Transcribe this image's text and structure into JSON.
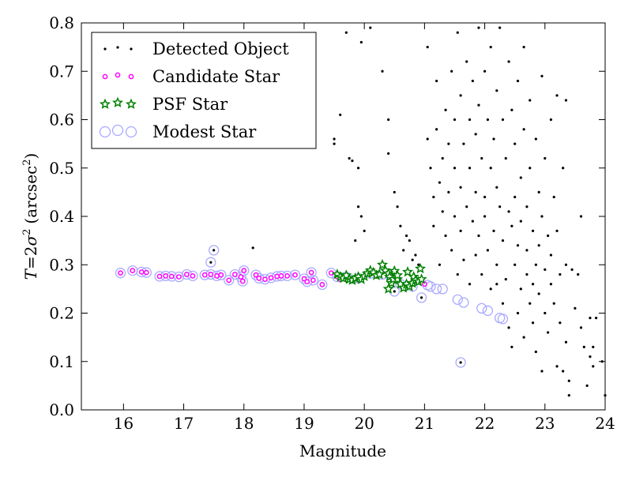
{
  "chart_data": {
    "type": "scatter",
    "title": "",
    "xlabel": "Magnitude",
    "ylabel": "T = 2σ² (arcsec²)",
    "ylabel_parts": {
      "T": "T",
      "eq": "=2",
      "sigma": "σ",
      "sup2": "2",
      "unit": "(arcsec",
      "unit_sup": "2",
      "close": ")"
    },
    "xlim": [
      15.3,
      24
    ],
    "ylim": [
      0.0,
      0.8
    ],
    "xticks": [
      16,
      17,
      18,
      19,
      20,
      21,
      22,
      23,
      24
    ],
    "xtick_labels": [
      "16",
      "17",
      "18",
      "19",
      "20",
      "21",
      "22",
      "23",
      "24"
    ],
    "yticks": [
      0.0,
      0.1,
      0.2,
      0.3,
      0.4,
      0.5,
      0.6,
      0.7,
      0.8
    ],
    "ytick_labels": [
      "0.0",
      "0.1",
      "0.2",
      "0.3",
      "0.4",
      "0.5",
      "0.6",
      "0.7",
      "0.8"
    ],
    "grid": false,
    "legend_position": "top-left",
    "series": [
      {
        "name": "Modest Star",
        "marker": "ring",
        "color": "#aaaaff",
        "points": [
          [
            15.95,
            0.283
          ],
          [
            16.15,
            0.288
          ],
          [
            16.3,
            0.285
          ],
          [
            16.38,
            0.284
          ],
          [
            16.6,
            0.276
          ],
          [
            16.7,
            0.277
          ],
          [
            16.8,
            0.276
          ],
          [
            16.92,
            0.275
          ],
          [
            17.05,
            0.28
          ],
          [
            17.15,
            0.277
          ],
          [
            17.35,
            0.279
          ],
          [
            17.45,
            0.28
          ],
          [
            17.55,
            0.277
          ],
          [
            17.62,
            0.279
          ],
          [
            17.75,
            0.268
          ],
          [
            17.85,
            0.28
          ],
          [
            17.95,
            0.275
          ],
          [
            17.98,
            0.266
          ],
          [
            18.0,
            0.288
          ],
          [
            18.2,
            0.279
          ],
          [
            18.25,
            0.272
          ],
          [
            18.35,
            0.27
          ],
          [
            18.45,
            0.273
          ],
          [
            18.55,
            0.276
          ],
          [
            18.62,
            0.277
          ],
          [
            18.72,
            0.277
          ],
          [
            18.85,
            0.279
          ],
          [
            19.0,
            0.271
          ],
          [
            19.05,
            0.265
          ],
          [
            19.12,
            0.284
          ],
          [
            19.15,
            0.268
          ],
          [
            19.3,
            0.259
          ],
          [
            19.45,
            0.283
          ],
          [
            19.55,
            0.275
          ],
          [
            17.45,
            0.305
          ],
          [
            17.5,
            0.33
          ],
          [
            20.5,
            0.245
          ],
          [
            20.95,
            0.232
          ],
          [
            21.05,
            0.258
          ],
          [
            21.1,
            0.255
          ],
          [
            21.2,
            0.25
          ],
          [
            21.3,
            0.25
          ],
          [
            21.55,
            0.228
          ],
          [
            21.65,
            0.222
          ],
          [
            21.6,
            0.098
          ],
          [
            21.95,
            0.21
          ],
          [
            22.05,
            0.205
          ],
          [
            22.25,
            0.19
          ],
          [
            22.3,
            0.188
          ],
          [
            19.7,
            0.275
          ],
          [
            19.9,
            0.272
          ],
          [
            20.1,
            0.282
          ],
          [
            20.3,
            0.28
          ],
          [
            20.45,
            0.27
          ],
          [
            20.6,
            0.26
          ],
          [
            20.8,
            0.255
          ]
        ]
      },
      {
        "name": "Detected Object",
        "marker": "dot",
        "color": "#000000",
        "points": [
          [
            17.45,
            0.305
          ],
          [
            17.5,
            0.33
          ],
          [
            18.15,
            0.335
          ],
          [
            19.5,
            0.56
          ],
          [
            19.5,
            0.55
          ],
          [
            19.6,
            0.61
          ],
          [
            19.75,
            0.52
          ],
          [
            19.8,
            0.515
          ],
          [
            19.9,
            0.5
          ],
          [
            19.95,
            0.4
          ],
          [
            19.95,
            0.76
          ],
          [
            20.1,
            0.79
          ],
          [
            19.7,
            0.78
          ],
          [
            19.85,
            0.35
          ],
          [
            19.9,
            0.42
          ],
          [
            20.0,
            0.37
          ],
          [
            20.3,
            0.7
          ],
          [
            20.4,
            0.6
          ],
          [
            20.4,
            0.53
          ],
          [
            20.5,
            0.45
          ],
          [
            20.55,
            0.42
          ],
          [
            20.6,
            0.38
          ],
          [
            20.65,
            0.33
          ],
          [
            20.7,
            0.36
          ],
          [
            20.75,
            0.35
          ],
          [
            20.8,
            0.31
          ],
          [
            20.85,
            0.32
          ],
          [
            20.9,
            0.3
          ],
          [
            20.5,
            0.245
          ],
          [
            20.95,
            0.232
          ],
          [
            21.0,
            0.26
          ],
          [
            21.05,
            0.75
          ],
          [
            21.05,
            0.56
          ],
          [
            21.1,
            0.5
          ],
          [
            21.15,
            0.44
          ],
          [
            21.15,
            0.38
          ],
          [
            21.2,
            0.68
          ],
          [
            21.2,
            0.58
          ],
          [
            21.25,
            0.47
          ],
          [
            21.25,
            0.3
          ],
          [
            21.3,
            0.52
          ],
          [
            21.3,
            0.41
          ],
          [
            21.35,
            0.62
          ],
          [
            21.35,
            0.36
          ],
          [
            21.4,
            0.55
          ],
          [
            21.4,
            0.45
          ],
          [
            21.45,
            0.7
          ],
          [
            21.45,
            0.33
          ],
          [
            21.5,
            0.6
          ],
          [
            21.5,
            0.5
          ],
          [
            21.5,
            0.4
          ],
          [
            21.55,
            0.78
          ],
          [
            21.55,
            0.28
          ],
          [
            21.6,
            0.65
          ],
          [
            21.6,
            0.46
          ],
          [
            21.6,
            0.37
          ],
          [
            21.65,
            0.55
          ],
          [
            21.65,
            0.31
          ],
          [
            21.7,
            0.72
          ],
          [
            21.7,
            0.42
          ],
          [
            21.75,
            0.6
          ],
          [
            21.75,
            0.5
          ],
          [
            21.75,
            0.26
          ],
          [
            21.8,
            0.68
          ],
          [
            21.8,
            0.39
          ],
          [
            21.85,
            0.57
          ],
          [
            21.85,
            0.45
          ],
          [
            21.85,
            0.32
          ],
          [
            21.9,
            0.79
          ],
          [
            21.9,
            0.63
          ],
          [
            21.9,
            0.36
          ],
          [
            21.95,
            0.52
          ],
          [
            21.95,
            0.28
          ],
          [
            22.0,
            0.7
          ],
          [
            22.0,
            0.44
          ],
          [
            22.0,
            0.4
          ],
          [
            22.05,
            0.6
          ],
          [
            22.05,
            0.33
          ],
          [
            22.1,
            0.75
          ],
          [
            22.1,
            0.5
          ],
          [
            22.1,
            0.25
          ],
          [
            22.15,
            0.56
          ],
          [
            22.15,
            0.37
          ],
          [
            22.2,
            0.66
          ],
          [
            22.2,
            0.46
          ],
          [
            22.2,
            0.3
          ],
          [
            22.25,
            0.79
          ],
          [
            22.25,
            0.42
          ],
          [
            22.3,
            0.6
          ],
          [
            22.3,
            0.35
          ],
          [
            22.3,
            0.22
          ],
          [
            22.35,
            0.52
          ],
          [
            22.35,
            0.27
          ],
          [
            22.4,
            0.72
          ],
          [
            22.4,
            0.41
          ],
          [
            22.4,
            0.17
          ],
          [
            22.45,
            0.62
          ],
          [
            22.45,
            0.38
          ],
          [
            22.45,
            0.13
          ],
          [
            22.5,
            0.55
          ],
          [
            22.5,
            0.44
          ],
          [
            22.5,
            0.3
          ],
          [
            22.55,
            0.68
          ],
          [
            22.55,
            0.34
          ],
          [
            22.55,
            0.2
          ],
          [
            22.6,
            0.48
          ],
          [
            22.6,
            0.39
          ],
          [
            22.6,
            0.25
          ],
          [
            22.65,
            0.75
          ],
          [
            22.65,
            0.58
          ],
          [
            22.65,
            0.15
          ],
          [
            22.7,
            0.42
          ],
          [
            22.7,
            0.33
          ],
          [
            22.7,
            0.28
          ],
          [
            22.75,
            0.64
          ],
          [
            22.75,
            0.5
          ],
          [
            22.75,
            0.22
          ],
          [
            22.8,
            0.37
          ],
          [
            22.8,
            0.18
          ],
          [
            22.85,
            0.56
          ],
          [
            22.85,
            0.3
          ],
          [
            22.85,
            0.12
          ],
          [
            22.9,
            0.45
          ],
          [
            22.9,
            0.34
          ],
          [
            22.9,
            0.24
          ],
          [
            22.95,
            0.69
          ],
          [
            22.95,
            0.4
          ],
          [
            22.95,
            0.08
          ],
          [
            23.0,
            0.52
          ],
          [
            23.0,
            0.29
          ],
          [
            23.0,
            0.2
          ],
          [
            23.05,
            0.36
          ],
          [
            23.05,
            0.16
          ],
          [
            23.1,
            0.6
          ],
          [
            23.1,
            0.32
          ],
          [
            23.1,
            0.26
          ],
          [
            23.15,
            0.44
          ],
          [
            23.15,
            0.22
          ],
          [
            23.2,
            0.65
          ],
          [
            23.2,
            0.37
          ],
          [
            23.2,
            0.09
          ],
          [
            23.25,
            0.28
          ],
          [
            23.25,
            0.18
          ],
          [
            23.3,
            0.5
          ],
          [
            23.3,
            0.08
          ],
          [
            23.35,
            0.64
          ],
          [
            23.35,
            0.3
          ],
          [
            23.35,
            0.14
          ],
          [
            23.4,
            0.06
          ],
          [
            23.4,
            0.03
          ],
          [
            23.45,
            0.29
          ],
          [
            23.5,
            0.21
          ],
          [
            23.55,
            0.28
          ],
          [
            23.6,
            0.4
          ],
          [
            23.6,
            0.17
          ],
          [
            23.65,
            0.13
          ],
          [
            23.7,
            0.05
          ],
          [
            23.75,
            0.11
          ],
          [
            23.75,
            0.19
          ],
          [
            23.8,
            0.13
          ],
          [
            23.85,
            0.19
          ],
          [
            23.95,
            0.1
          ],
          [
            24.0,
            0.03
          ],
          [
            23.8,
            0.09
          ],
          [
            22.2,
            0.26
          ],
          [
            22.8,
            0.26
          ],
          [
            21.6,
            0.098
          ]
        ]
      },
      {
        "name": "Candidate Star",
        "marker": "small-circle",
        "color": "#ff00ff",
        "points": [
          [
            15.95,
            0.283
          ],
          [
            16.15,
            0.288
          ],
          [
            16.3,
            0.285
          ],
          [
            16.38,
            0.284
          ],
          [
            16.6,
            0.276
          ],
          [
            16.7,
            0.277
          ],
          [
            16.8,
            0.276
          ],
          [
            16.92,
            0.275
          ],
          [
            17.05,
            0.28
          ],
          [
            17.15,
            0.277
          ],
          [
            17.35,
            0.279
          ],
          [
            17.45,
            0.28
          ],
          [
            17.55,
            0.277
          ],
          [
            17.62,
            0.279
          ],
          [
            17.75,
            0.268
          ],
          [
            17.85,
            0.28
          ],
          [
            17.95,
            0.275
          ],
          [
            17.98,
            0.266
          ],
          [
            18.0,
            0.288
          ],
          [
            18.2,
            0.279
          ],
          [
            18.25,
            0.272
          ],
          [
            18.35,
            0.27
          ],
          [
            18.45,
            0.273
          ],
          [
            18.55,
            0.276
          ],
          [
            18.62,
            0.277
          ],
          [
            18.72,
            0.277
          ],
          [
            18.85,
            0.279
          ],
          [
            19.0,
            0.271
          ],
          [
            19.05,
            0.265
          ],
          [
            19.12,
            0.284
          ],
          [
            19.15,
            0.268
          ],
          [
            19.3,
            0.259
          ],
          [
            19.45,
            0.283
          ],
          [
            19.55,
            0.275
          ],
          [
            19.6,
            0.27
          ],
          [
            21.0,
            0.26
          ]
        ]
      },
      {
        "name": "PSF Star",
        "marker": "star",
        "color": "#008000",
        "points": [
          [
            19.55,
            0.28
          ],
          [
            19.6,
            0.275
          ],
          [
            19.65,
            0.272
          ],
          [
            19.7,
            0.278
          ],
          [
            19.75,
            0.27
          ],
          [
            19.8,
            0.268
          ],
          [
            19.85,
            0.272
          ],
          [
            19.9,
            0.275
          ],
          [
            19.95,
            0.27
          ],
          [
            20.0,
            0.276
          ],
          [
            20.05,
            0.282
          ],
          [
            20.1,
            0.288
          ],
          [
            20.15,
            0.284
          ],
          [
            20.2,
            0.278
          ],
          [
            20.25,
            0.28
          ],
          [
            20.3,
            0.3
          ],
          [
            20.35,
            0.288
          ],
          [
            20.4,
            0.282
          ],
          [
            20.42,
            0.275
          ],
          [
            20.45,
            0.262
          ],
          [
            20.48,
            0.27
          ],
          [
            20.5,
            0.287
          ],
          [
            20.55,
            0.27
          ],
          [
            20.6,
            0.26
          ],
          [
            20.65,
            0.252
          ],
          [
            20.7,
            0.26
          ],
          [
            20.72,
            0.285
          ],
          [
            20.75,
            0.255
          ],
          [
            20.8,
            0.262
          ],
          [
            20.82,
            0.275
          ],
          [
            20.85,
            0.268
          ],
          [
            20.9,
            0.265
          ],
          [
            20.93,
            0.292
          ],
          [
            20.95,
            0.27
          ],
          [
            20.4,
            0.25
          ],
          [
            20.55,
            0.278
          ]
        ]
      }
    ]
  }
}
